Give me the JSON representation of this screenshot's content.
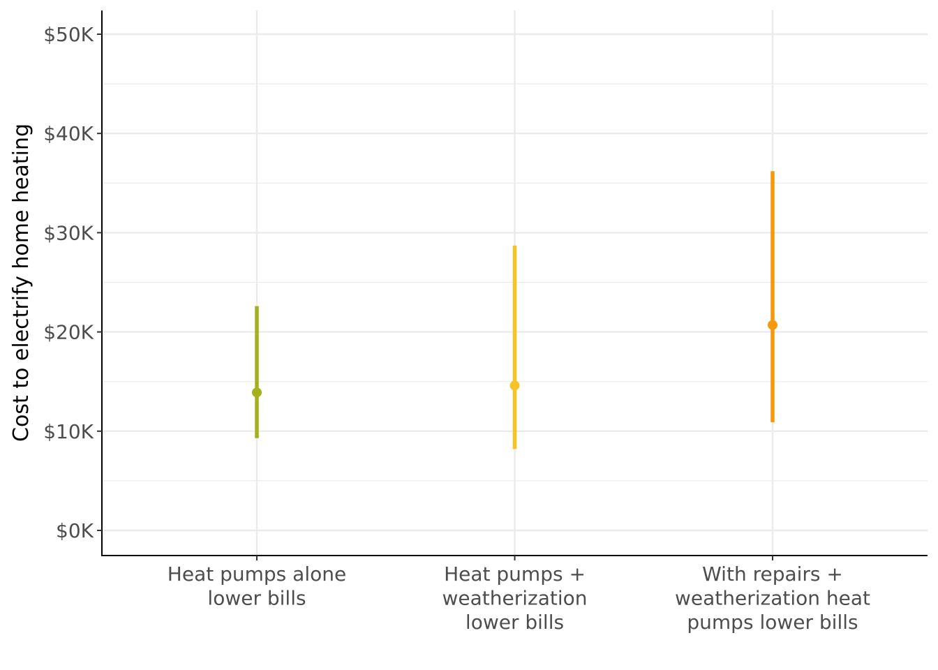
{
  "chart_data": {
    "type": "pointrange",
    "title": "",
    "xlabel": "",
    "ylabel": "Cost to electrify home heating",
    "ylim": [
      -2.5,
      52.5
    ],
    "y_ticks": [
      0,
      10,
      20,
      30,
      40,
      50
    ],
    "y_tick_labels": [
      "$0K",
      "$10K",
      "$20K",
      "$30K",
      "$40K",
      "$50K"
    ],
    "y_minor_ticks": [
      5,
      15,
      25,
      35,
      45
    ],
    "y_units": "thousands of dollars",
    "grid": true,
    "categories": [
      "Heat pumps alone lower bills",
      "Heat pumps + weatherization lower bills",
      "With repairs + weatherization heat pumps lower bills"
    ],
    "category_label_lines": [
      [
        "Heat pumps alone",
        "lower bills"
      ],
      [
        "Heat pumps +",
        "weatherization",
        "lower bills"
      ],
      [
        "With repairs +",
        "weatherization heat",
        "pumps lower bills"
      ]
    ],
    "series": [
      {
        "name": "Heat pumps alone lower bills",
        "estimate": 13.9,
        "low": 9.3,
        "high": 22.6,
        "color": "#a3b11d"
      },
      {
        "name": "Heat pumps + weatherization lower bills",
        "estimate": 14.6,
        "low": 8.2,
        "high": 28.7,
        "color": "#f7c325"
      },
      {
        "name": "With repairs + weatherization heat pumps lower bills",
        "estimate": 20.7,
        "low": 10.9,
        "high": 36.2,
        "color": "#f7990e"
      }
    ]
  }
}
